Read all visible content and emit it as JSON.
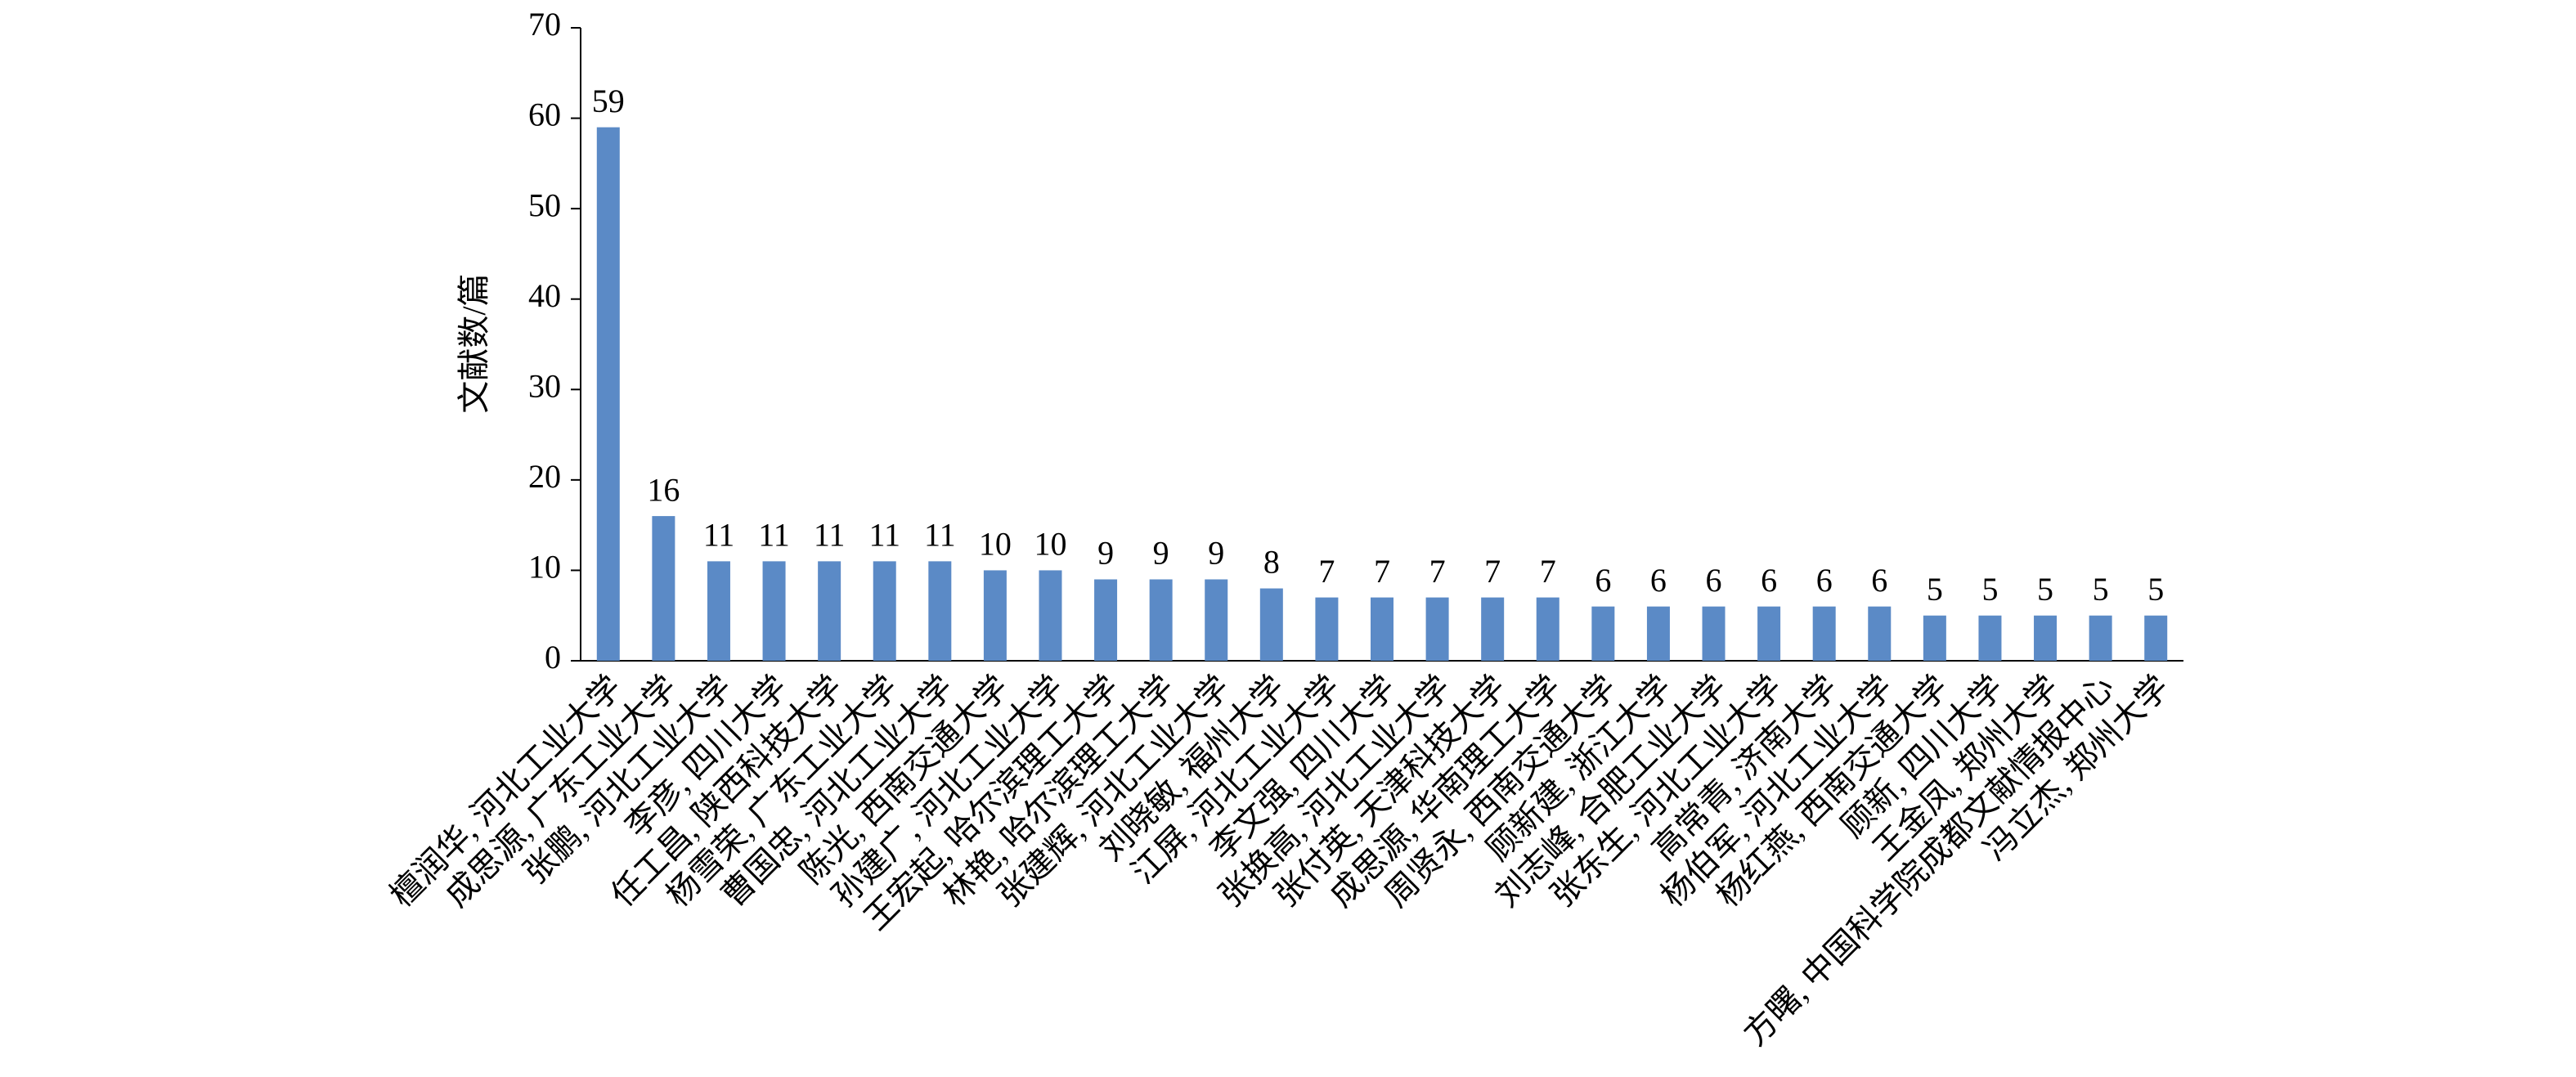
{
  "chart_data": {
    "type": "bar",
    "y_label": "文献数/篇",
    "categories": [
      "檀润华, 河北工业大学",
      "成思源, 广东工业大学",
      "张鹏, 河北工业大学",
      "李彦, 四川大学",
      "任工昌, 陕西科技大学",
      "杨雪荣, 广东工业大学",
      "曹国忠, 河北工业大学",
      "陈光, 西南交通大学",
      "孙建广, 河北工业大学",
      "王宏起, 哈尔滨理工大学",
      "林艳, 哈尔滨理工大学",
      "张建辉, 河北工业大学",
      "刘晓敏, 福州大学",
      "江屏, 河北工业大学",
      "李文强, 四川大学",
      "张换高, 河北工业大学",
      "张付英, 天津科技大学",
      "成思源, 华南理工大学",
      "周贤永, 西南交通大学",
      "顾新建, 浙江大学",
      "刘志峰, 合肥工业大学",
      "张东生, 河北工业大学",
      "高常青, 济南大学",
      "杨伯军, 河北工业大学",
      "杨红燕, 西南交通大学",
      "顾新, 四川大学",
      "王金凤, 郑州大学",
      "方曙, 中国科学院成都文献情报中心",
      "冯立杰, 郑州大学"
    ],
    "values": [
      59,
      16,
      11,
      11,
      11,
      11,
      11,
      10,
      10,
      9,
      9,
      9,
      8,
      7,
      7,
      7,
      7,
      7,
      6,
      6,
      6,
      6,
      6,
      6,
      5,
      5,
      5,
      5,
      5
    ],
    "color": "#5b8ac6",
    "ylim": [
      0,
      70
    ],
    "yticks": [
      0,
      10,
      20,
      30,
      40,
      50,
      60,
      70
    ],
    "grid": false,
    "data_labels": true
  }
}
